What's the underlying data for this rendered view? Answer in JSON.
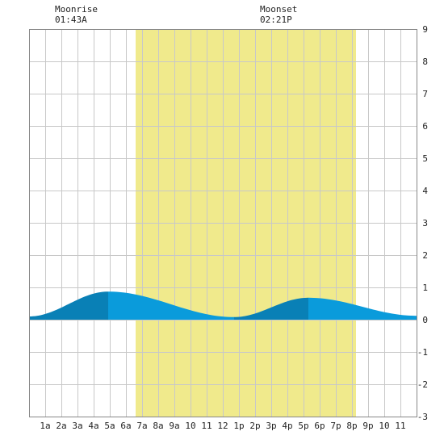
{
  "header": {
    "moonrise_label": "Moonrise",
    "moonrise_time": "01:43A",
    "moonset_label": "Moonset",
    "moonset_time": "02:21P"
  },
  "chart_data": {
    "type": "area",
    "title": "",
    "xlabel": "",
    "ylabel": "",
    "xlim": [
      0,
      24
    ],
    "ylim": [
      -3,
      9
    ],
    "grid": true,
    "x_ticks": [
      1,
      2,
      3,
      4,
      5,
      6,
      7,
      8,
      9,
      10,
      11,
      12,
      13,
      14,
      15,
      16,
      17,
      18,
      19,
      20,
      21,
      22,
      23
    ],
    "x_tick_labels": [
      "1a",
      "2a",
      "3a",
      "4a",
      "5a",
      "6a",
      "7a",
      "8a",
      "9a",
      "10",
      "11",
      "12",
      "1p",
      "2p",
      "3p",
      "4p",
      "5p",
      "6p",
      "7p",
      "8p",
      "9p",
      "10",
      "11"
    ],
    "y_ticks": [
      9,
      8,
      7,
      6,
      5,
      4,
      3,
      2,
      1,
      0,
      -1,
      -2,
      -3
    ],
    "daylight": [
      6.6,
      20.25
    ],
    "moonrise_hour": 1.72,
    "moonset_hour": 14.35,
    "tide_extremes": [
      {
        "type": "low",
        "hour": 0.0,
        "height": 0.1
      },
      {
        "type": "high",
        "hour": 4.9,
        "height": 0.87
      },
      {
        "type": "low",
        "hour": 12.7,
        "height": 0.08
      },
      {
        "type": "high",
        "hour": 17.3,
        "height": 0.68
      },
      {
        "type": "low",
        "hour": 24.0,
        "height": 0.12
      }
    ],
    "colors": {
      "daylight": "#f0ea8c",
      "rising": "#0980b6",
      "falling": "#0a9bdb",
      "grid": "#c8c8c8",
      "frame": "#888888"
    }
  }
}
